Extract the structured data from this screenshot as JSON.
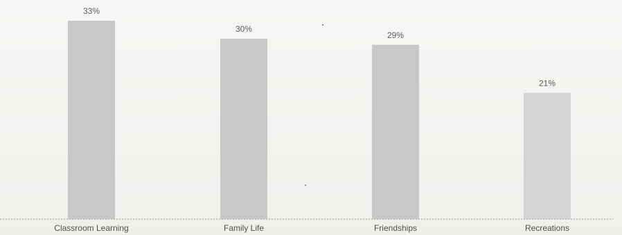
{
  "chart_data": {
    "type": "bar",
    "categories": [
      "Classroom Learning",
      "Family Life",
      "Friendships",
      "Recreations"
    ],
    "values": [
      33,
      30,
      29,
      21
    ],
    "value_labels": [
      "33%",
      "30%",
      "29%",
      "21%"
    ],
    "unit": "%",
    "ylim": [
      0,
      33
    ],
    "grid": false,
    "legend": "none",
    "bar_colors": [
      "#c8c8c8",
      "#c8c8c8",
      "#c8c8c8",
      "#d4d4d4"
    ]
  }
}
